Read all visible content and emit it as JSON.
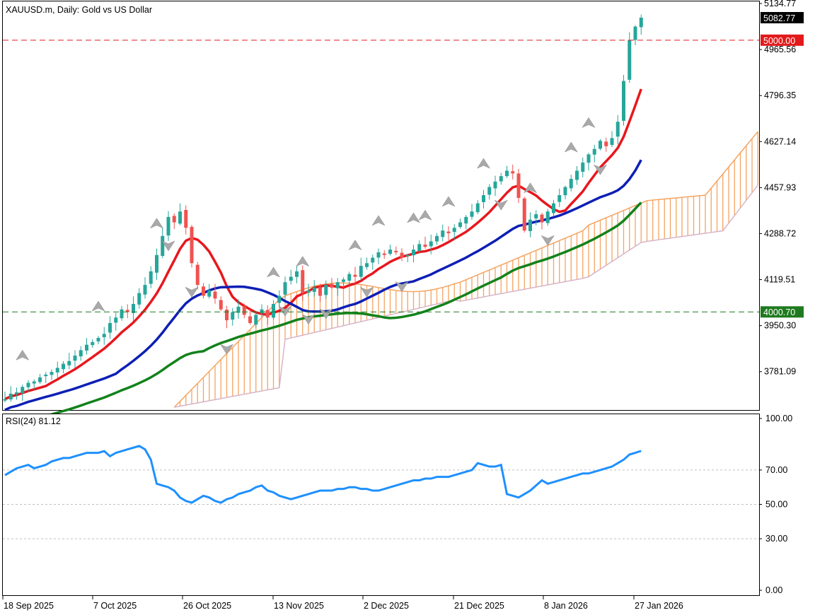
{
  "chart_data": [
    {
      "type": "candlestick",
      "title": "XAUUSD.m, Daily:  Gold vs US Dollar",
      "symbol": "XAUUSD.m",
      "timeframe": "Daily",
      "description": "Gold vs US Dollar",
      "price_axis_labels": [
        "5134.77",
        "4965.56",
        "4796.35",
        "4627.14",
        "4457.93",
        "4288.72",
        "4119.51",
        "3950.30",
        "3781.09"
      ],
      "ylim": [
        3640,
        5134.77
      ],
      "date_labels": [
        "18 Sep 2025",
        "7 Oct 2025",
        "26 Oct 2025",
        "13 Nov 2025",
        "2 Dec 2025",
        "21 Dec 2025",
        "8 Jan 2026",
        "27 Jan 2026"
      ],
      "current_price": "5082.77",
      "levels": [
        {
          "value": "5000.00",
          "color": "#e31a1c",
          "style": "dashed"
        },
        {
          "value": "4000.70",
          "color": "#1f7a1f",
          "style": "dashed"
        }
      ],
      "close_series": [
        3680,
        3700,
        3705,
        3725,
        3740,
        3745,
        3760,
        3770,
        3780,
        3795,
        3810,
        3820,
        3840,
        3860,
        3880,
        3890,
        3905,
        3920,
        3960,
        3980,
        4010,
        4000,
        4030,
        4070,
        4100,
        4150,
        4210,
        4280,
        4350,
        4330,
        4370,
        4310,
        4180,
        4100,
        4060,
        4080,
        4050,
        4010,
        3970,
        4000,
        4020,
        3990,
        3960,
        3990,
        4010,
        3980,
        4030,
        4060,
        4110,
        4130,
        4150,
        4070,
        4080,
        4090,
        4060,
        4100,
        4090,
        4110,
        4120,
        4140,
        4130,
        4170,
        4180,
        4200,
        4220,
        4210,
        4230,
        4220,
        4200,
        4210,
        4230,
        4250,
        4240,
        4260,
        4280,
        4300,
        4290,
        4310,
        4330,
        4350,
        4370,
        4400,
        4430,
        4460,
        4480,
        4500,
        4520,
        4510,
        4420,
        4300,
        4340,
        4360,
        4330,
        4370,
        4400,
        4430,
        4460,
        4490,
        4520,
        4550,
        4580,
        4600,
        4630,
        4610,
        4640,
        4700,
        4850,
        5000,
        5050,
        5082.77
      ],
      "sma_red_end": 4850,
      "sma_blue_end": 4620,
      "sma_green_end": 4460,
      "ichimoku_cloud_end": 4650,
      "oscillator": {
        "title": "RSI(24) 81.12",
        "name": "RSI(24)",
        "value": "81.12",
        "axis_labels": [
          "100.00",
          "70.00",
          "50.00",
          "30.00",
          "0.00"
        ],
        "levels": [
          70,
          50,
          30
        ],
        "values": [
          67,
          69,
          71,
          72,
          73,
          71,
          72,
          73,
          75,
          76,
          77,
          77,
          78,
          79,
          80,
          80,
          80,
          81,
          78,
          80,
          81,
          82,
          83,
          84,
          82,
          76,
          62,
          61,
          60,
          58,
          54,
          52,
          51,
          53,
          55,
          54,
          52,
          51,
          53,
          54,
          56,
          57,
          58,
          60,
          61,
          58,
          57,
          55,
          54,
          53,
          54,
          55,
          56,
          57,
          58,
          58,
          58,
          59,
          59,
          60,
          60,
          59,
          59,
          58,
          58,
          59,
          60,
          61,
          62,
          63,
          64,
          64,
          65,
          65,
          66,
          66,
          66,
          67,
          68,
          69,
          70,
          74,
          73,
          72,
          72,
          73,
          56,
          55,
          54,
          56,
          58,
          61,
          64,
          62,
          63,
          64,
          65,
          66,
          67,
          68,
          68,
          69,
          70,
          71,
          72,
          74,
          76,
          79,
          80,
          81.12
        ]
      }
    }
  ]
}
